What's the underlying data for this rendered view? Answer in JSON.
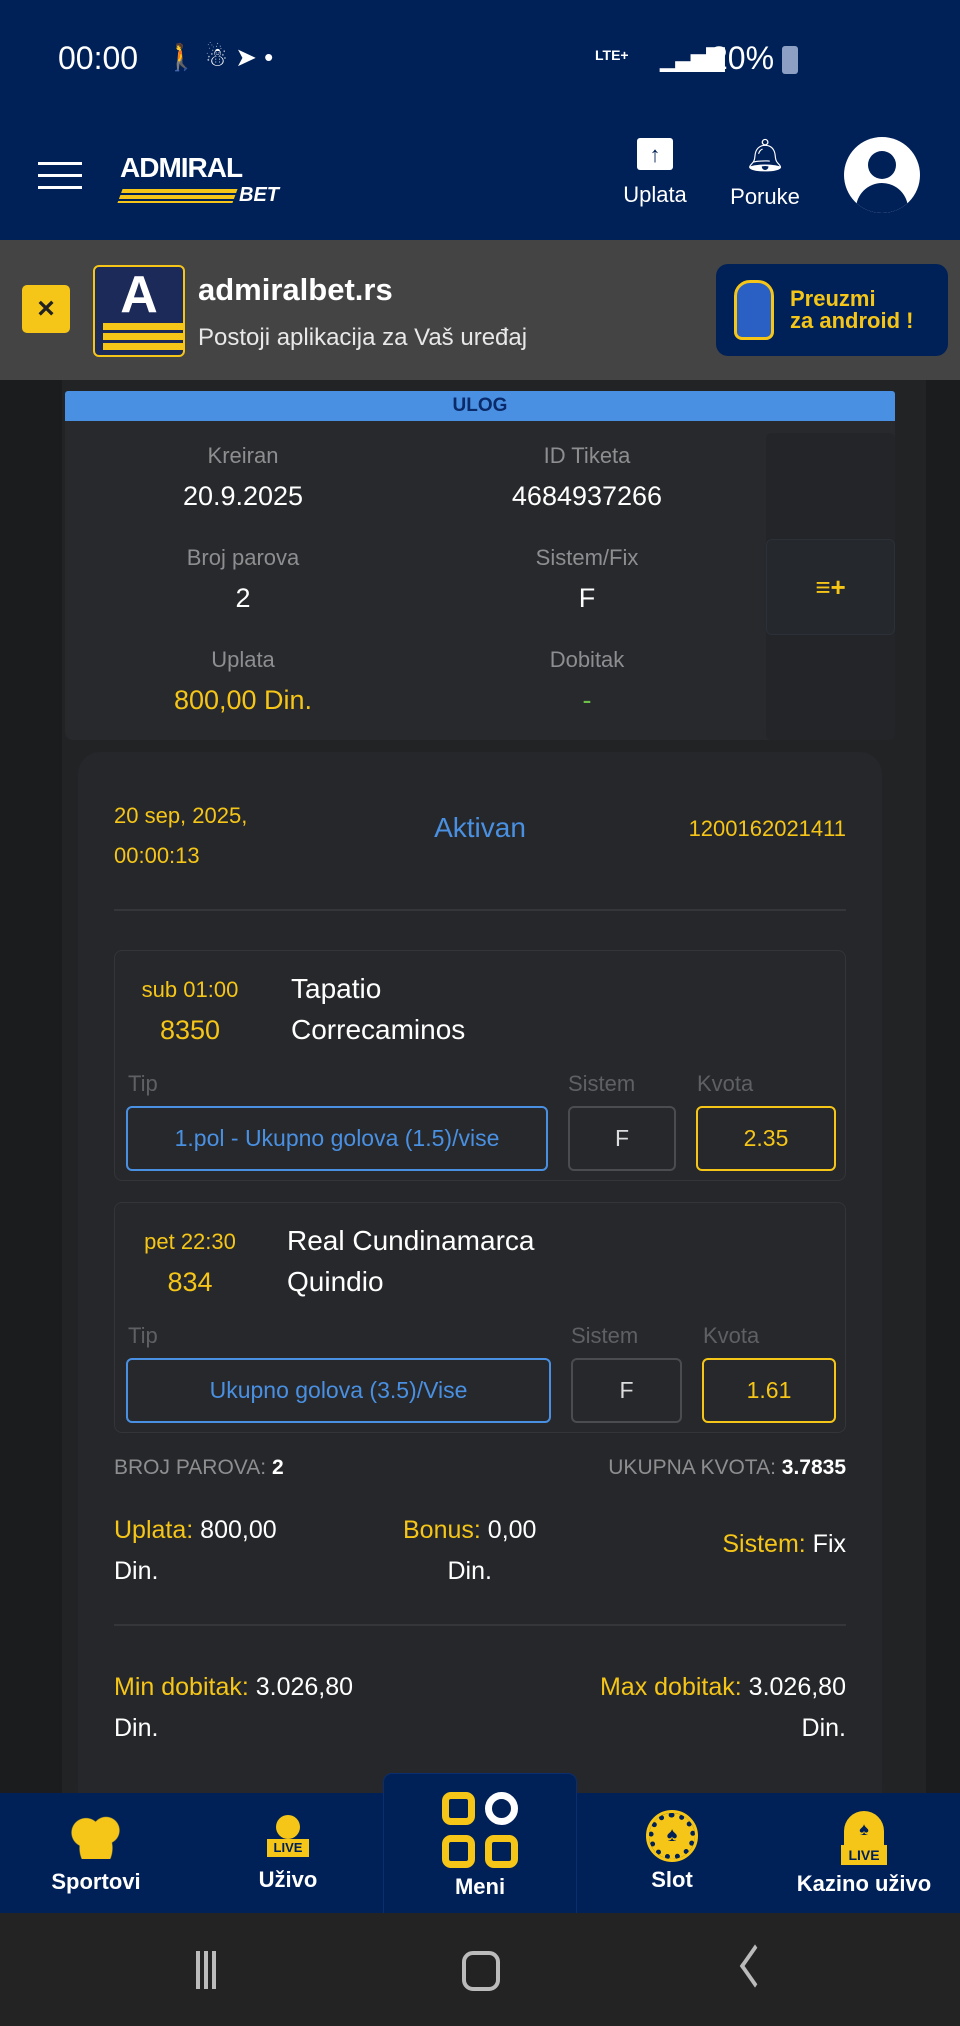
{
  "status_bar": {
    "time": "00:00",
    "network": "LTE+",
    "battery": "20%"
  },
  "header": {
    "logo_top": "ADMIRAL",
    "logo_bottom": "BET",
    "uplata": "Uplata",
    "poruke": "Poruke"
  },
  "banner": {
    "title": "admiralbet.rs",
    "subtitle": "Postoji aplikacija za Vaš uređaj",
    "download_line1": "Preuzmi",
    "download_line2": "za android !",
    "icon_letter": "A"
  },
  "ticket": {
    "section_title": "ULOG",
    "fields": [
      {
        "label": "Kreiran",
        "value": "20.9.2025"
      },
      {
        "label": "ID Tiketa",
        "value": "4684937266"
      },
      {
        "label": "Broj parova",
        "value": "2"
      },
      {
        "label": "Sistem/Fix",
        "value": "F"
      },
      {
        "label": "Uplata",
        "value": "800,00 Din."
      },
      {
        "label": "Dobitak",
        "value": "-"
      }
    ],
    "detail": {
      "date": "20 sep, 2025,",
      "time": "00:00:13",
      "status": "Aktivan",
      "code": "1200162021411",
      "matches": [
        {
          "time": "sub 01:00",
          "number": "8350",
          "home": "Tapatio",
          "away": "Correcaminos",
          "tip_label": "Tip",
          "sistem_label": "Sistem",
          "kvota_label": "Kvota",
          "tip": "1.pol - Ukupno golova (1.5)/vise",
          "sistem": "F",
          "kvota": "2.35"
        },
        {
          "time": "pet 22:30",
          "number": "834",
          "home": "Real Cundinamarca",
          "away": "Quindio",
          "tip_label": "Tip",
          "sistem_label": "Sistem",
          "kvota_label": "Kvota",
          "tip": "Ukupno golova (3.5)/Vise",
          "sistem": "F",
          "kvota": "1.61"
        }
      ],
      "broj_parova_label": "BROJ PAROVA:",
      "broj_parova": "2",
      "ukupna_kvota_label": "UKUPNA KVOTA:",
      "ukupna_kvota": "3.7835",
      "uplata_label": "Uplata:",
      "uplata": "800,00",
      "bonus_label": "Bonus:",
      "bonus": "0,00",
      "currency": "Din.",
      "sistem_label": "Sistem:",
      "sistem": "Fix",
      "min_label": "Min dobitak:",
      "min": "3.026,80",
      "max_label": "Max dobitak:",
      "max": "3.026,80"
    }
  },
  "bottom_nav": [
    {
      "label": "Sportovi",
      "icon": "sports-balls-icon"
    },
    {
      "label": "Uživo",
      "icon": "live-ball-icon",
      "badge": "LIVE"
    },
    {
      "label": "Meni",
      "icon": "menu-grid-icon",
      "active": true
    },
    {
      "label": "Slot",
      "icon": "casino-chip-icon"
    },
    {
      "label": "Kazino uživo",
      "icon": "live-casino-icon",
      "badge": "LIVE"
    }
  ],
  "colors": {
    "brand_navy": "#002058",
    "accent_yellow": "#f5c518",
    "accent_blue": "#4a90e2"
  }
}
